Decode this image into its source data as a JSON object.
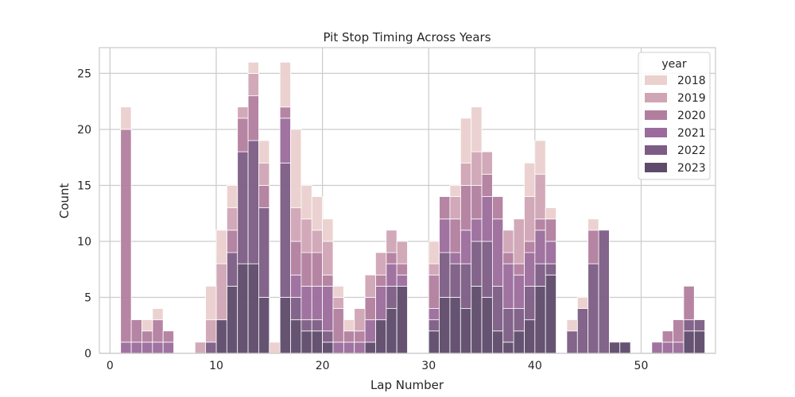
{
  "chart_data": {
    "type": "bar",
    "stacked": true,
    "title": "Pit Stop Timing Across Years",
    "xlabel": "Lap Number",
    "ylabel": "Count",
    "xlim": [
      -1,
      57
    ],
    "ylim": [
      0,
      27.3
    ],
    "xticks": [
      0,
      10,
      20,
      30,
      40,
      50
    ],
    "yticks": [
      0,
      5,
      10,
      15,
      20,
      25
    ],
    "grid": true,
    "legend": {
      "title": "year",
      "position": "top-right"
    },
    "bin_width": 1,
    "x": [
      0,
      1,
      2,
      3,
      4,
      5,
      6,
      7,
      8,
      9,
      10,
      11,
      12,
      13,
      14,
      15,
      16,
      17,
      18,
      19,
      20,
      21,
      22,
      23,
      24,
      25,
      26,
      27,
      28,
      29,
      30,
      31,
      32,
      33,
      34,
      35,
      36,
      37,
      38,
      39,
      40,
      41,
      42,
      43,
      44,
      45,
      46,
      47,
      48,
      49,
      50,
      51,
      52,
      53,
      54,
      55
    ],
    "series": [
      {
        "name": "2023",
        "color": "#5e4a6a",
        "values": [
          0,
          0,
          0,
          0,
          0,
          0,
          0,
          0,
          0,
          0,
          3,
          6,
          8,
          8,
          5,
          0,
          5,
          3,
          2,
          2,
          1,
          0,
          0,
          0,
          1,
          3,
          4,
          6,
          0,
          0,
          2,
          5,
          5,
          4,
          6,
          5,
          2,
          1,
          2,
          3,
          6,
          7,
          0,
          0,
          0,
          0,
          0,
          1,
          1,
          0,
          0,
          0,
          0,
          0,
          2,
          2
        ]
      },
      {
        "name": "2022",
        "color": "#7c5c84",
        "values": [
          0,
          0,
          0,
          0,
          0,
          0,
          0,
          0,
          0,
          1,
          0,
          3,
          10,
          11,
          8,
          0,
          12,
          2,
          1,
          1,
          1,
          0,
          0,
          0,
          0,
          0,
          2,
          0,
          0,
          0,
          1,
          4,
          3,
          4,
          4,
          5,
          4,
          3,
          2,
          3,
          2,
          1,
          0,
          2,
          4,
          8,
          11,
          0,
          0,
          0,
          0,
          0,
          0,
          0,
          1,
          1
        ]
      },
      {
        "name": "2021",
        "color": "#9b6b9c",
        "values": [
          0,
          1,
          1,
          1,
          1,
          1,
          0,
          0,
          0,
          0,
          0,
          0,
          0,
          0,
          0,
          0,
          4,
          2,
          3,
          3,
          4,
          1,
          1,
          1,
          2,
          3,
          2,
          1,
          0,
          0,
          1,
          3,
          1,
          3,
          2,
          4,
          6,
          4,
          3,
          3,
          3,
          2,
          0,
          0,
          0,
          0,
          0,
          0,
          0,
          0,
          0,
          1,
          1,
          1,
          0,
          0
        ]
      },
      {
        "name": "2020",
        "color": "#b27e9e",
        "values": [
          0,
          19,
          2,
          1,
          2,
          1,
          0,
          0,
          0,
          0,
          0,
          2,
          3,
          4,
          2,
          0,
          1,
          3,
          3,
          3,
          1,
          3,
          1,
          1,
          2,
          1,
          1,
          1,
          0,
          0,
          3,
          2,
          3,
          4,
          3,
          2,
          2,
          1,
          1,
          1,
          1,
          2,
          0,
          0,
          0,
          3,
          0,
          0,
          0,
          0,
          0,
          0,
          1,
          2,
          3,
          0
        ]
      },
      {
        "name": "2019",
        "color": "#d0a4b4",
        "values": [
          0,
          0,
          0,
          0,
          0,
          0,
          0,
          0,
          1,
          2,
          5,
          2,
          1,
          2,
          2,
          0,
          0,
          3,
          3,
          2,
          3,
          1,
          0,
          2,
          2,
          2,
          2,
          2,
          0,
          0,
          1,
          0,
          2,
          2,
          3,
          2,
          0,
          2,
          4,
          4,
          4,
          0,
          0,
          0,
          0,
          0,
          0,
          0,
          0,
          0,
          0,
          0,
          0,
          0,
          0,
          0
        ]
      },
      {
        "name": "2018",
        "color": "#ead0cf",
        "values": [
          0,
          2,
          0,
          1,
          1,
          0,
          0,
          0,
          0,
          3,
          3,
          2,
          0,
          1,
          2,
          1,
          4,
          7,
          3,
          3,
          2,
          1,
          1,
          0,
          0,
          0,
          0,
          0,
          0,
          0,
          2,
          0,
          1,
          4,
          4,
          0,
          0,
          0,
          0,
          3,
          3,
          1,
          0,
          1,
          1,
          1,
          0,
          0,
          0,
          0,
          0,
          0,
          0,
          0,
          0,
          0
        ]
      }
    ]
  }
}
